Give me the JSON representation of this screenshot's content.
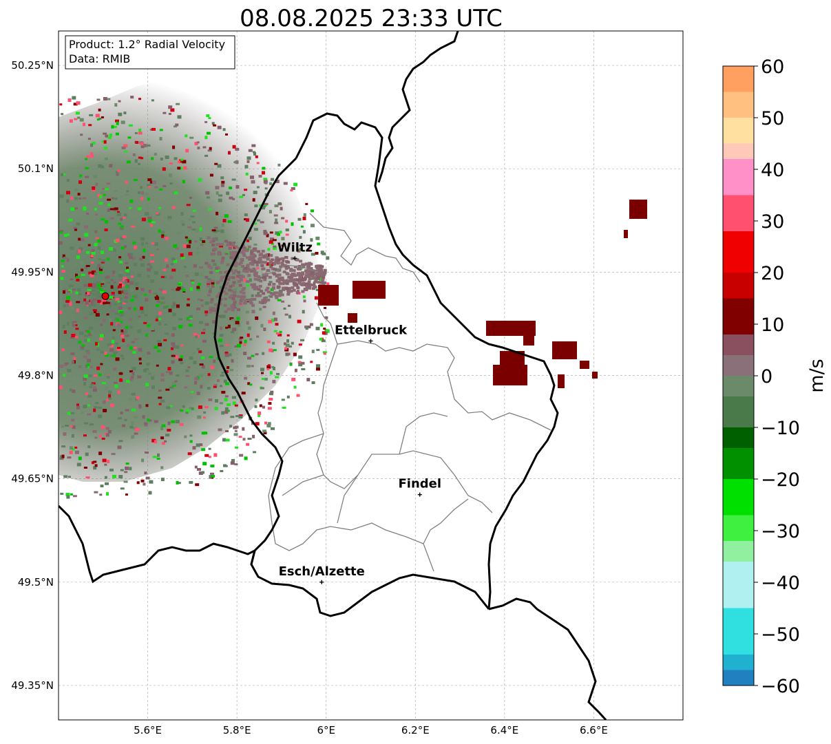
{
  "title": "08.08.2025 23:33 UTC",
  "info_box": {
    "product": "Product: 1.2° Radial Velocity",
    "data": "Data: RMIB"
  },
  "map": {
    "lon_range": [
      5.4,
      6.8
    ],
    "lat_range": [
      49.3,
      50.3
    ],
    "lat_ticks": [
      {
        "value": 50.25,
        "label": "50.25°N"
      },
      {
        "value": 50.1,
        "label": "50.1°N"
      },
      {
        "value": 49.95,
        "label": "49.95°N"
      },
      {
        "value": 49.8,
        "label": "49.8°N"
      },
      {
        "value": 49.65,
        "label": "49.65°N"
      },
      {
        "value": 49.5,
        "label": "49.5°N"
      },
      {
        "value": 49.35,
        "label": "49.35°N"
      }
    ],
    "lon_ticks": [
      {
        "value": 5.6,
        "label": "5.6°E"
      },
      {
        "value": 5.8,
        "label": "5.8°E"
      },
      {
        "value": 6.0,
        "label": "6°E"
      },
      {
        "value": 6.2,
        "label": "6.2°E"
      },
      {
        "value": 6.4,
        "label": "6.4°E"
      },
      {
        "value": 6.6,
        "label": "6.6°E"
      }
    ],
    "gridlines": true,
    "radar_site": {
      "lon": 5.505,
      "lat": 49.915,
      "color": "#e00000"
    },
    "cities": [
      {
        "name": "Wiltz",
        "lon": 5.93,
        "lat": 49.97
      },
      {
        "name": "Ettelbruck",
        "lon": 6.1,
        "lat": 49.85
      },
      {
        "name": "Findel",
        "lon": 6.21,
        "lat": 49.627
      },
      {
        "name": "Esch/Alzette",
        "lon": 5.99,
        "lat": 49.5
      }
    ]
  },
  "colorbar": {
    "label": "m/s",
    "min": -60,
    "max": 60,
    "ticks": [
      {
        "value": 60,
        "label": "60"
      },
      {
        "value": 50,
        "label": "50"
      },
      {
        "value": 40,
        "label": "40"
      },
      {
        "value": 30,
        "label": "30"
      },
      {
        "value": 20,
        "label": "20"
      },
      {
        "value": 10,
        "label": "10"
      },
      {
        "value": 0,
        "label": "0"
      },
      {
        "value": -10,
        "label": "−10"
      },
      {
        "value": -20,
        "label": "−20"
      },
      {
        "value": -30,
        "label": "−30"
      },
      {
        "value": -40,
        "label": "−40"
      },
      {
        "value": -50,
        "label": "−50"
      },
      {
        "value": -60,
        "label": "−60"
      }
    ],
    "bands": [
      {
        "from": 55,
        "to": 60,
        "color": "#ffa060"
      },
      {
        "from": 50,
        "to": 55,
        "color": "#ffc080"
      },
      {
        "from": 45,
        "to": 50,
        "color": "#ffe0a0"
      },
      {
        "from": 42,
        "to": 45,
        "color": "#ffc8b8"
      },
      {
        "from": 35,
        "to": 42,
        "color": "#ff90c8"
      },
      {
        "from": 28,
        "to": 35,
        "color": "#ff5070"
      },
      {
        "from": 20,
        "to": 28,
        "color": "#f00000"
      },
      {
        "from": 15,
        "to": 20,
        "color": "#c80000"
      },
      {
        "from": 8,
        "to": 15,
        "color": "#800000"
      },
      {
        "from": 4,
        "to": 8,
        "color": "#8a5060"
      },
      {
        "from": 0,
        "to": 4,
        "color": "#8a7078"
      },
      {
        "from": -4,
        "to": 0,
        "color": "#6a8a6a"
      },
      {
        "from": -10,
        "to": -4,
        "color": "#4a7a4a"
      },
      {
        "from": -14,
        "to": -10,
        "color": "#006000"
      },
      {
        "from": -20,
        "to": -14,
        "color": "#009000"
      },
      {
        "from": -27,
        "to": -20,
        "color": "#00e000"
      },
      {
        "from": -32,
        "to": -27,
        "color": "#40f040"
      },
      {
        "from": -36,
        "to": -32,
        "color": "#90f0a0"
      },
      {
        "from": -45,
        "to": -36,
        "color": "#b0f0f0"
      },
      {
        "from": -54,
        "to": -45,
        "color": "#30e0e0"
      },
      {
        "from": -57,
        "to": -54,
        "color": "#20b0d0"
      },
      {
        "from": -60,
        "to": -57,
        "color": "#2080c0"
      }
    ]
  },
  "echo_colors": {
    "ground": "#5e7e60",
    "ground_alt": "#6a8a6a",
    "mauve": "#85606a",
    "mauve_light": "#8a6a72",
    "dark_red": "#800000",
    "red": "#d00010",
    "green": "#00c000",
    "bright_green": "#20e020",
    "pink": "#ff5070"
  }
}
